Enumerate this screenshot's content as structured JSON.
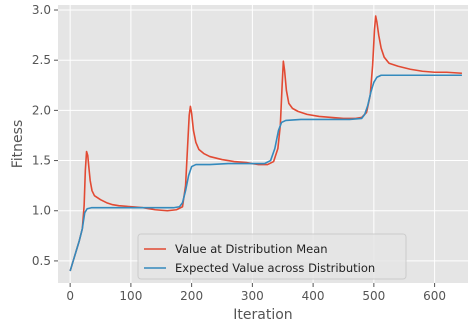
{
  "chart_data": {
    "type": "line",
    "xlabel": "Iteration",
    "ylabel": "Fitness",
    "xlim": [
      -20,
      655
    ],
    "ylim": [
      0.28,
      3.05
    ],
    "xticks": [
      0,
      100,
      200,
      300,
      400,
      500,
      600
    ],
    "yticks": [
      0.5,
      1.0,
      1.5,
      2.0,
      2.5,
      3.0
    ],
    "ytick_labels": [
      "0.5",
      "1.0",
      "1.5",
      "2.0",
      "2.5",
      "3.0"
    ],
    "grid": true,
    "legend_position": "bottom-center",
    "series": [
      {
        "name": "Value at Distribution Mean",
        "color": "#E24A33",
        "points": [
          [
            0,
            0.4
          ],
          [
            5,
            0.5
          ],
          [
            10,
            0.6
          ],
          [
            15,
            0.7
          ],
          [
            20,
            0.82
          ],
          [
            23,
            1.05
          ],
          [
            25,
            1.4
          ],
          [
            27,
            1.59
          ],
          [
            29,
            1.55
          ],
          [
            31,
            1.42
          ],
          [
            33,
            1.3
          ],
          [
            36,
            1.2
          ],
          [
            40,
            1.15
          ],
          [
            50,
            1.11
          ],
          [
            60,
            1.08
          ],
          [
            70,
            1.06
          ],
          [
            80,
            1.05
          ],
          [
            100,
            1.04
          ],
          [
            120,
            1.03
          ],
          [
            140,
            1.01
          ],
          [
            160,
            1.0
          ],
          [
            175,
            1.01
          ],
          [
            185,
            1.04
          ],
          [
            190,
            1.25
          ],
          [
            193,
            1.6
          ],
          [
            196,
            1.95
          ],
          [
            198,
            2.04
          ],
          [
            200,
            1.97
          ],
          [
            203,
            1.8
          ],
          [
            207,
            1.68
          ],
          [
            212,
            1.61
          ],
          [
            220,
            1.57
          ],
          [
            230,
            1.54
          ],
          [
            250,
            1.51
          ],
          [
            270,
            1.49
          ],
          [
            290,
            1.48
          ],
          [
            310,
            1.46
          ],
          [
            325,
            1.46
          ],
          [
            335,
            1.49
          ],
          [
            342,
            1.62
          ],
          [
            346,
            1.85
          ],
          [
            349,
            2.25
          ],
          [
            351,
            2.49
          ],
          [
            353,
            2.4
          ],
          [
            356,
            2.2
          ],
          [
            360,
            2.07
          ],
          [
            366,
            2.02
          ],
          [
            375,
            1.99
          ],
          [
            390,
            1.96
          ],
          [
            410,
            1.94
          ],
          [
            430,
            1.93
          ],
          [
            450,
            1.92
          ],
          [
            470,
            1.92
          ],
          [
            480,
            1.93
          ],
          [
            488,
            1.98
          ],
          [
            494,
            2.15
          ],
          [
            498,
            2.45
          ],
          [
            501,
            2.8
          ],
          [
            503,
            2.94
          ],
          [
            505,
            2.88
          ],
          [
            508,
            2.75
          ],
          [
            512,
            2.62
          ],
          [
            517,
            2.53
          ],
          [
            525,
            2.47
          ],
          [
            540,
            2.44
          ],
          [
            560,
            2.41
          ],
          [
            580,
            2.39
          ],
          [
            600,
            2.38
          ],
          [
            620,
            2.38
          ],
          [
            645,
            2.37
          ]
        ]
      },
      {
        "name": "Expected Value across Distribution",
        "color": "#348ABD",
        "points": [
          [
            0,
            0.4
          ],
          [
            5,
            0.5
          ],
          [
            10,
            0.6
          ],
          [
            15,
            0.7
          ],
          [
            20,
            0.82
          ],
          [
            24,
            0.98
          ],
          [
            28,
            1.02
          ],
          [
            35,
            1.03
          ],
          [
            60,
            1.03
          ],
          [
            100,
            1.03
          ],
          [
            140,
            1.03
          ],
          [
            170,
            1.03
          ],
          [
            180,
            1.04
          ],
          [
            185,
            1.08
          ],
          [
            190,
            1.2
          ],
          [
            195,
            1.35
          ],
          [
            200,
            1.44
          ],
          [
            207,
            1.46
          ],
          [
            230,
            1.46
          ],
          [
            260,
            1.47
          ],
          [
            300,
            1.47
          ],
          [
            320,
            1.47
          ],
          [
            330,
            1.5
          ],
          [
            337,
            1.62
          ],
          [
            343,
            1.8
          ],
          [
            348,
            1.88
          ],
          [
            355,
            1.9
          ],
          [
            380,
            1.91
          ],
          [
            420,
            1.91
          ],
          [
            460,
            1.91
          ],
          [
            480,
            1.92
          ],
          [
            485,
            1.96
          ],
          [
            490,
            2.05
          ],
          [
            495,
            2.18
          ],
          [
            500,
            2.28
          ],
          [
            505,
            2.33
          ],
          [
            512,
            2.35
          ],
          [
            530,
            2.35
          ],
          [
            570,
            2.35
          ],
          [
            610,
            2.35
          ],
          [
            645,
            2.35
          ]
        ]
      }
    ]
  }
}
